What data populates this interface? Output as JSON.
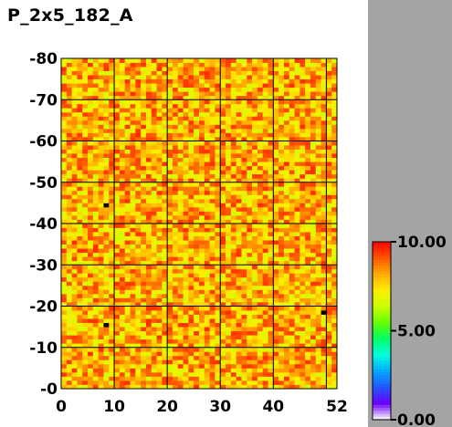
{
  "title": "P_2x5_182_A",
  "chart_data": {
    "type": "heatmap",
    "title": "P_2x5_182_A",
    "x_range": [
      0,
      52
    ],
    "y_range": [
      0,
      80
    ],
    "x_ticks": [
      "0",
      "10",
      "20",
      "30",
      "40",
      "52"
    ],
    "y_ticks": [
      "-0",
      "-10",
      "-20",
      "-30",
      "-40",
      "-50",
      "-60",
      "-70",
      "-80"
    ],
    "grid": true,
    "grid_color": "#000000",
    "cell_columns": 52,
    "cell_rows": 80,
    "typical_value_range": [
      6.5,
      9.5
    ],
    "dead_cells": [
      {
        "x": 8,
        "y": 44,
        "value": 10.0
      },
      {
        "x": 8,
        "y": 15,
        "value": 10.0
      },
      {
        "x": 49,
        "y": 18,
        "value": 10.0
      }
    ],
    "colorbar": {
      "min": 0.0,
      "max": 10.0,
      "tick_labels": [
        "10.00",
        "5.00",
        "0.00"
      ],
      "colors": [
        "#ffffff",
        "#6a00ff",
        "#2255ff",
        "#00aaff",
        "#00ffe0",
        "#00ff66",
        "#66ff00",
        "#ccff00",
        "#ffee00",
        "#ffaa00",
        "#ff5500",
        "#ff0000",
        "#000000"
      ]
    }
  }
}
